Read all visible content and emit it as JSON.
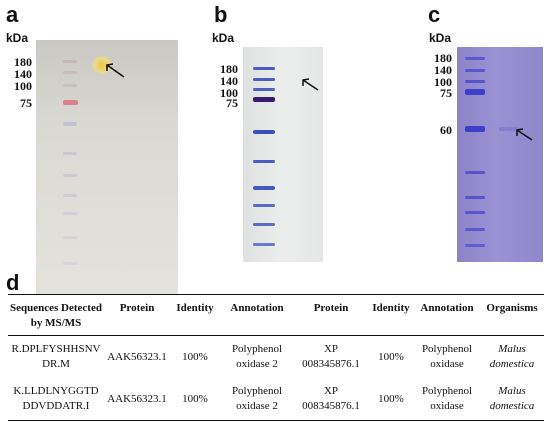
{
  "panels": {
    "a": {
      "letter": "a",
      "unit": "kDa",
      "markers": [
        "180",
        "140",
        "100",
        "75"
      ]
    },
    "b": {
      "letter": "b",
      "unit": "kDa",
      "markers": [
        "180",
        "140",
        "100",
        "75"
      ]
    },
    "c": {
      "letter": "c",
      "unit": "kDa",
      "markers": [
        "180",
        "140",
        "100",
        "75",
        "60"
      ]
    },
    "d": {
      "letter": "d"
    }
  },
  "table": {
    "headers": {
      "sequences": "Sequences Detected by MS/MS",
      "protein1": "Protein",
      "identity1": "Identity",
      "annotation1": "Annotation",
      "protein2": "Protein",
      "identity2": "Identity",
      "annotation2": "Annotation",
      "organisms": "Organisms"
    },
    "rows": [
      {
        "seq_l1": "R.DPLFYSHHSNV",
        "seq_l2": "DR.M",
        "protein1": "AAK56323.1",
        "identity1": "100%",
        "annot1_l1": "Polyphenol",
        "annot1_l2": "oxidase 2",
        "prot2_l1": "XP",
        "prot2_l2": "008345876.1",
        "identity2": "100%",
        "annot2_l1": "Polyphenol",
        "annot2_l2": "oxidase",
        "org_l1": "Malus",
        "org_l2": "domestica"
      },
      {
        "seq_l1": "K.LLDLNYGGTD",
        "seq_l2": "DDVDDATR.I",
        "protein1": "AAK56323.1",
        "identity1": "100%",
        "annot1_l1": "Polyphenol",
        "annot1_l2": "oxidase 2",
        "prot2_l1": "XP",
        "prot2_l2": "008345876.1",
        "identity2": "100%",
        "annot2_l1": "Polyphenol",
        "annot2_l2": "oxidase",
        "org_l1": "Malus",
        "org_l2": "domestica"
      }
    ]
  },
  "colors": {
    "gel_a_background": "#d8d7d2",
    "gel_a_marker_75": "#d9808a",
    "gel_a_target_band": "#e8c84a",
    "gel_b_background": "#e6e7e7",
    "gel_b_marker_bands": "#3c4fb8",
    "gel_b_marker_75": "#3a1a6e",
    "gel_c_background": "#948bd0",
    "gel_c_marker_bands": "#3e3fc8"
  },
  "icons": [
    "arrow-icon"
  ]
}
